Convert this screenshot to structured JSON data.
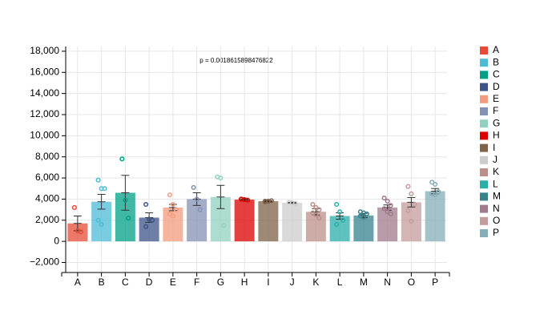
{
  "chart_data": {
    "type": "bar",
    "annotation": "p = 0.0018615898476822",
    "categories": [
      "A",
      "B",
      "C",
      "D",
      "E",
      "F",
      "G",
      "H",
      "I",
      "J",
      "K",
      "L",
      "M",
      "N",
      "O",
      "P"
    ],
    "colors": [
      "#E64B35",
      "#4DBBD5",
      "#00A087",
      "#3C5488",
      "#F39B7F",
      "#8491B4",
      "#91D1C2",
      "#DC0000",
      "#7E6148",
      "#cccccc",
      "#bc8f8a",
      "#2aaeaa",
      "#35818c",
      "#a07a8c",
      "#c49c9c",
      "#86aeb8"
    ],
    "values": [
      1700,
      3750,
      4600,
      2250,
      3200,
      4000,
      4200,
      3950,
      3800,
      3650,
      2800,
      2400,
      2450,
      3200,
      3700,
      4750
    ],
    "errors": [
      700,
      700,
      1650,
      450,
      300,
      600,
      1100,
      80,
      60,
      50,
      300,
      300,
      200,
      250,
      450,
      250
    ],
    "points": [
      [
        3200,
        1000,
        900
      ],
      [
        5800,
        5000,
        5000,
        2000,
        1600
      ],
      [
        7800,
        3900,
        2200
      ],
      [
        3500,
        2100,
        2000,
        1400
      ],
      [
        4400,
        3500,
        3000,
        2600,
        2400
      ],
      [
        5100,
        4000,
        3000
      ],
      [
        6100,
        6000,
        1500
      ],
      [
        4000,
        3950,
        3900,
        4000,
        3950
      ],
      [
        3800,
        3800,
        3850,
        3750,
        3800
      ],
      [
        3700,
        3650,
        3600
      ],
      [
        3500,
        3200,
        3000,
        2700,
        2500,
        2200
      ],
      [
        3500,
        2800,
        2000,
        1600
      ],
      [
        2800,
        2700,
        2600,
        2400,
        2300
      ],
      [
        4100,
        3800,
        3400,
        3100,
        2800,
        2600
      ],
      [
        5200,
        4500,
        3500,
        2900,
        1900
      ],
      [
        5600,
        5400,
        4700,
        4500,
        4400
      ]
    ],
    "ylim": [
      -2950,
      18450
    ],
    "yticks": [
      {
        "value": -2000,
        "label": "−2,000"
      },
      0,
      {
        "value": 2000,
        "label": "2,000"
      },
      {
        "value": 4000,
        "label": "4,000"
      },
      {
        "value": 6000,
        "label": "6,000"
      },
      {
        "value": 8000,
        "label": "8,000"
      },
      {
        "value": 10000,
        "label": "10,000"
      },
      {
        "value": 12000,
        "label": "12,000"
      },
      {
        "value": 14000,
        "label": "14,000"
      },
      {
        "value": 16000,
        "label": "16,000"
      },
      {
        "value": 18000,
        "label": "18,000"
      }
    ],
    "grid": true
  }
}
